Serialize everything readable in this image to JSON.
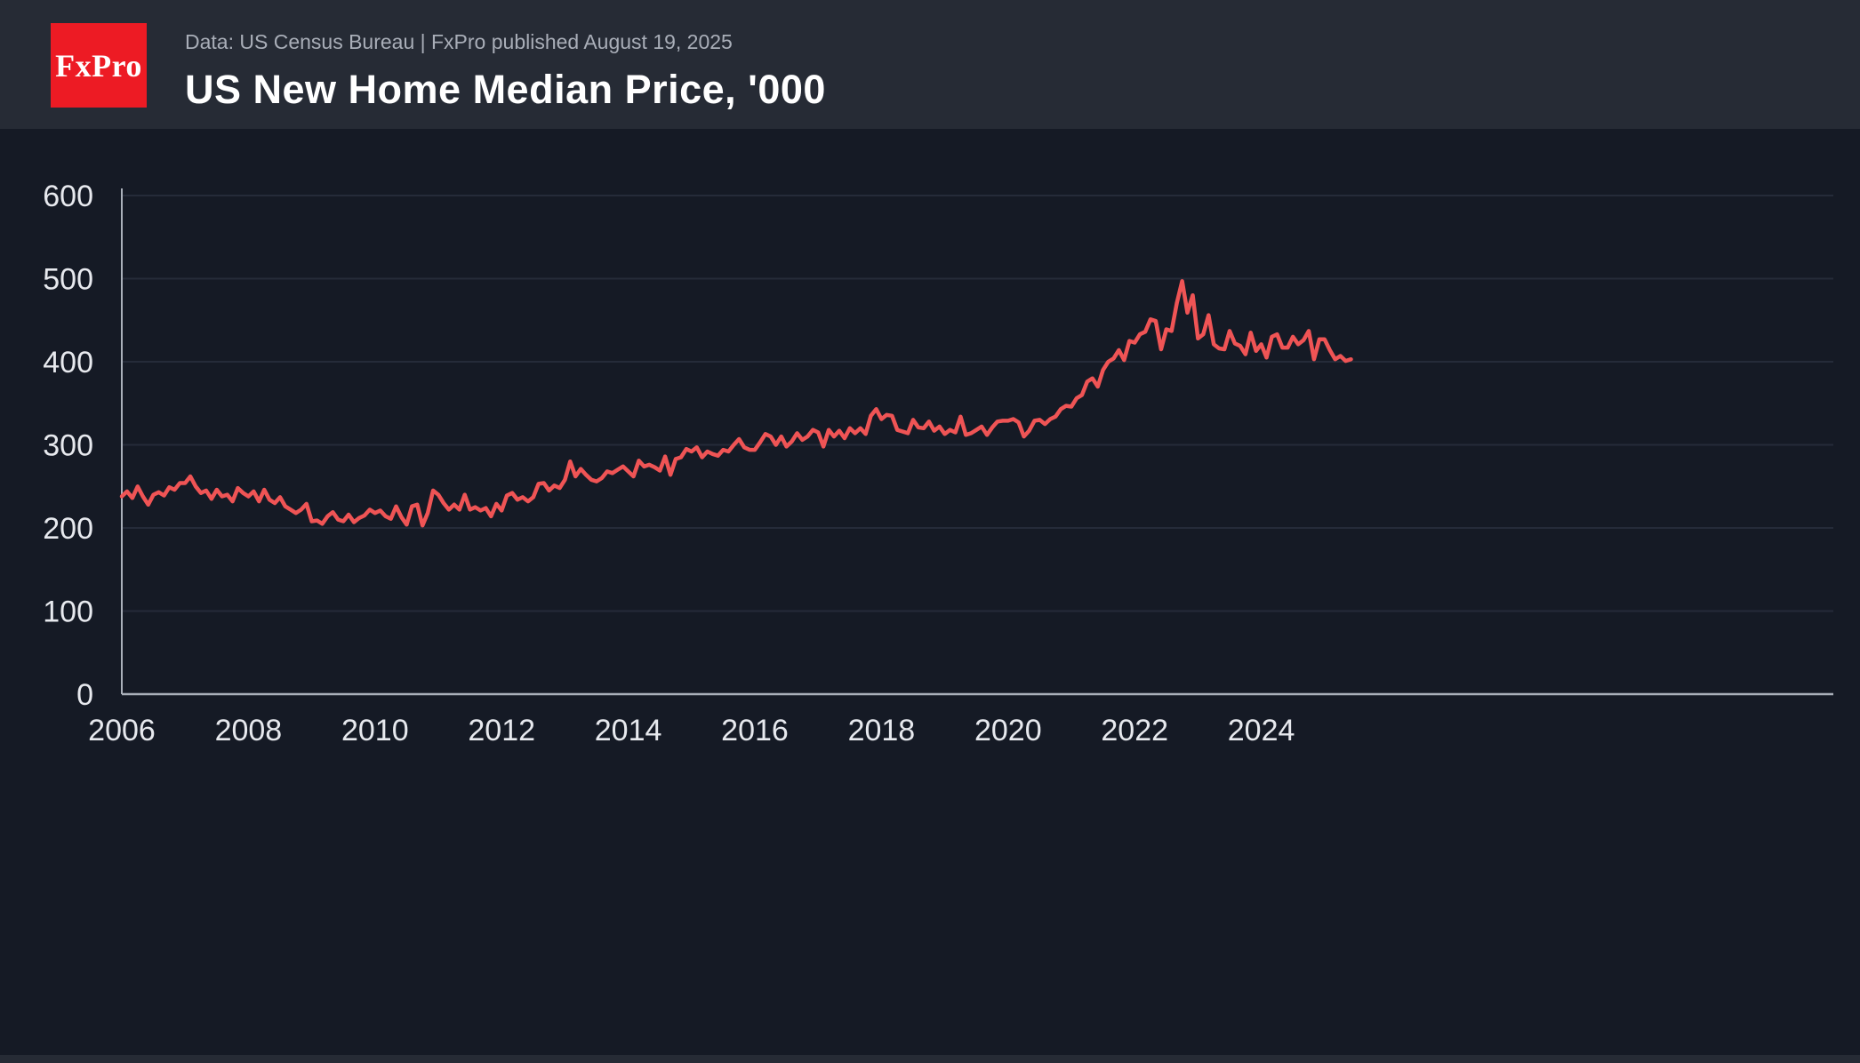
{
  "header": {
    "logo_text": "FxPro",
    "source_line": "Data: US Census Bureau | FxPro published August 19, 2025",
    "title": "US New Home Median Price, '000"
  },
  "colors": {
    "page_background": "#151a25",
    "header_background": "#262b35",
    "logo_background": "#ed1b24",
    "line": "#ef5455",
    "grid": "#252b39",
    "axis": "#aab0ba",
    "tick_text": "#e7e9ee",
    "muted_text": "#a9aeb8"
  },
  "chart_data": {
    "type": "line",
    "title": "US New Home Median Price, '000",
    "series_name": "US new home median price, thousands USD",
    "x_start_year": 2006,
    "x_frequency": "monthly",
    "x_end_label": "mid-2025",
    "ylim": [
      0,
      600
    ],
    "yticks": [
      0,
      100,
      200,
      300,
      400,
      500,
      600
    ],
    "xticks": [
      2006,
      2008,
      2010,
      2012,
      2014,
      2016,
      2018,
      2020,
      2022,
      2024
    ],
    "grid": "horizontal",
    "legend": "none",
    "values": [
      238,
      244,
      236,
      250,
      238,
      228,
      240,
      243,
      239,
      249,
      246,
      254,
      254,
      262,
      250,
      242,
      245,
      235,
      246,
      238,
      240,
      232,
      248,
      242,
      238,
      244,
      232,
      246,
      234,
      230,
      237,
      226,
      222,
      218,
      222,
      229,
      208,
      209,
      205,
      214,
      219,
      210,
      208,
      216,
      207,
      212,
      215,
      222,
      218,
      221,
      214,
      211,
      226,
      213,
      204,
      226,
      228,
      203,
      218,
      245,
      240,
      230,
      222,
      228,
      222,
      240,
      222,
      225,
      221,
      224,
      214,
      229,
      221,
      239,
      242,
      234,
      237,
      232,
      237,
      253,
      254,
      245,
      251,
      248,
      258,
      280,
      262,
      271,
      264,
      258,
      256,
      260,
      268,
      266,
      270,
      274,
      268,
      262,
      281,
      274,
      276,
      273,
      269,
      286,
      264,
      283,
      285,
      295,
      292,
      297,
      285,
      292,
      289,
      287,
      294,
      292,
      300,
      307,
      297,
      294,
      294,
      303,
      313,
      310,
      300,
      310,
      298,
      304,
      314,
      306,
      310,
      318,
      315,
      298,
      318,
      310,
      317,
      308,
      320,
      314,
      320,
      313,
      335,
      343,
      331,
      336,
      335,
      318,
      316,
      314,
      330,
      321,
      320,
      328,
      317,
      322,
      313,
      318,
      315,
      334,
      312,
      314,
      318,
      322,
      312,
      321,
      328,
      329,
      329,
      331,
      327,
      310,
      317,
      329,
      330,
      325,
      331,
      334,
      343,
      347,
      346,
      356,
      360,
      376,
      380,
      370,
      390,
      400,
      404,
      414,
      402,
      425,
      423,
      433,
      436,
      451,
      449,
      415,
      439,
      437,
      471,
      497,
      459,
      480,
      428,
      433,
      456,
      421,
      416,
      415,
      437,
      422,
      419,
      409,
      435,
      413,
      421,
      405,
      430,
      433,
      417,
      417,
      430,
      421,
      426,
      437,
      403,
      427,
      427,
      414,
      403,
      407,
      401,
      403
    ]
  }
}
